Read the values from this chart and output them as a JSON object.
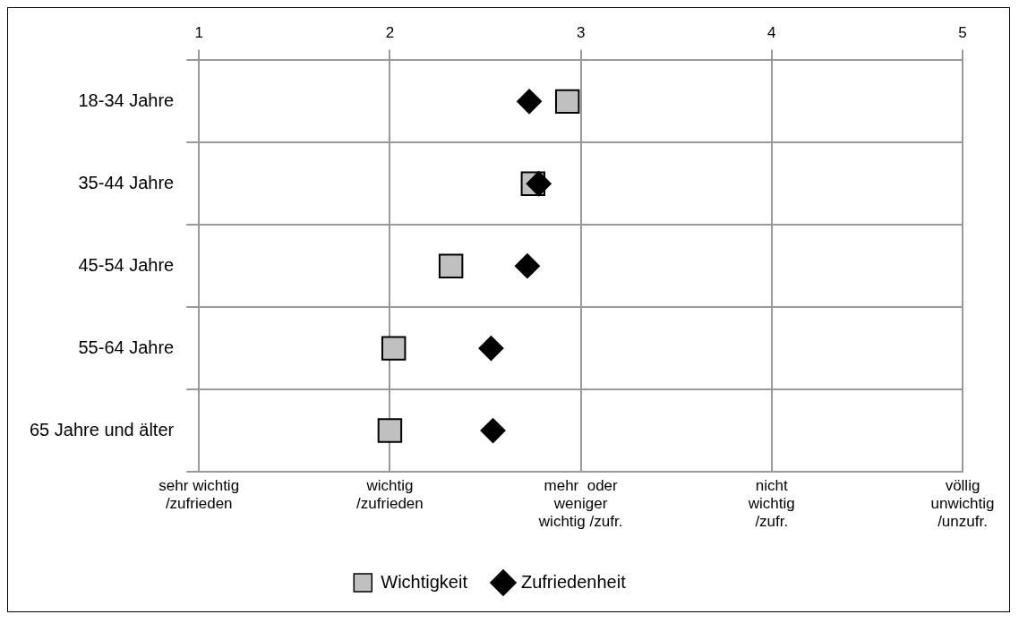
{
  "chart_data": {
    "type": "scatter",
    "categories": [
      "18-34 Jahre",
      "35-44 Jahre",
      "45-54 Jahre",
      "55-64 Jahre",
      "65 Jahre und älter"
    ],
    "series": [
      {
        "name": "Wichtigkeit",
        "color": "#c0c0c0",
        "marker": "square",
        "values": [
          2.93,
          2.75,
          2.32,
          2.02,
          2.0
        ]
      },
      {
        "name": "Zufriedenheit",
        "color": "#000000",
        "marker": "diamond",
        "values": [
          2.73,
          2.78,
          2.72,
          2.53,
          2.54
        ]
      }
    ],
    "orientation": "horizontal",
    "xlim": [
      1,
      5
    ],
    "xticks": [
      1,
      2,
      3,
      4,
      5
    ],
    "annotations": [
      "sehr wichtig\n/zufrieden",
      "wichtig\n/zufrieden",
      "mehr  oder\nweniger\nwichtig /zufr.",
      "nicht\nwichtig\n/zufr.",
      "völlig\nunwichtig\n/unzufr."
    ],
    "grid": true,
    "legend": "bottom"
  }
}
